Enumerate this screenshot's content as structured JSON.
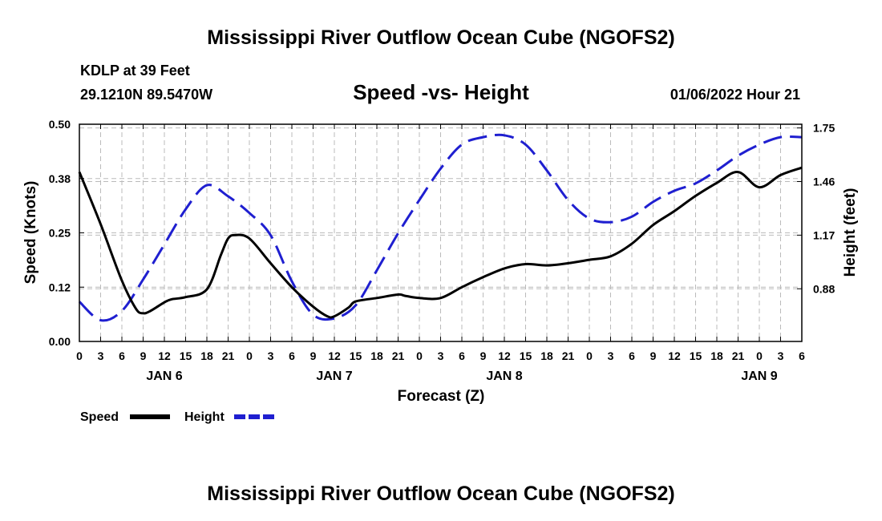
{
  "page": {
    "title": "Mississippi River Outflow Ocean Cube (NGOFS2)",
    "footer_title": "Mississippi River Outflow Ocean Cube (NGOFS2)"
  },
  "station": {
    "name": "KDLP at 39 Feet",
    "coords": "29.1210N  89.5470W",
    "timestamp": "01/06/2022 Hour 21"
  },
  "colors": {
    "speed": "#000000",
    "height": "#1f1fd0",
    "grid": "#bbbbbb"
  },
  "chart_data": {
    "type": "line",
    "title": "Speed -vs- Height",
    "xlabel": "Forecast (Z)",
    "ylabel": "Speed (Knots)",
    "y2label": "Height (feet)",
    "x_unit": "hours from 2022-01-05 00Z",
    "xlim": [
      0,
      102
    ],
    "ylim": [
      0,
      0.5
    ],
    "y2lim": [
      0.595,
      1.77
    ],
    "x_tick_values": [
      0,
      3,
      6,
      9,
      12,
      15,
      18,
      21,
      24,
      27,
      30,
      33,
      36,
      39,
      42,
      45,
      48,
      51,
      54,
      57,
      60,
      63,
      66,
      69,
      72,
      75,
      78,
      81,
      84,
      87,
      90,
      93,
      96,
      99,
      102
    ],
    "x_tick_labels": [
      "0",
      "3",
      "6",
      "9",
      "12",
      "15",
      "18",
      "21",
      "0",
      "3",
      "6",
      "9",
      "12",
      "15",
      "18",
      "21",
      "0",
      "3",
      "6",
      "9",
      "12",
      "15",
      "18",
      "21",
      "0",
      "3",
      "6",
      "9",
      "12",
      "15",
      "18",
      "21",
      "0",
      "3",
      "6"
    ],
    "y_tick_values": [
      0,
      0.125,
      0.25,
      0.375,
      0.5
    ],
    "y_tick_labels": [
      "0.00",
      "0.12",
      "0.25",
      "0.38",
      "0.50"
    ],
    "y2_tick_values": [
      0.88,
      1.17,
      1.46,
      1.75
    ],
    "y2_tick_labels": [
      "0.88",
      "1.17",
      "1.46",
      "1.75"
    ],
    "date_labels": [
      {
        "x": 12,
        "label": "JAN 6"
      },
      {
        "x": 36,
        "label": "JAN 7"
      },
      {
        "x": 60,
        "label": "JAN 8"
      },
      {
        "x": 96,
        "label": "JAN 9"
      }
    ],
    "series": [
      {
        "name": "Speed",
        "axis": "left",
        "style": "solid",
        "x": [
          0,
          3,
          6,
          8,
          9,
          10,
          12,
          13,
          15,
          18,
          20,
          21,
          22,
          24,
          27,
          30,
          33,
          35,
          36,
          38,
          39,
          42,
          45,
          46,
          48,
          51,
          54,
          57,
          60,
          63,
          66,
          69,
          72,
          75,
          78,
          81,
          84,
          87,
          90,
          93,
          96,
          99,
          102
        ],
        "y": [
          0.39,
          0.27,
          0.14,
          0.075,
          0.065,
          0.07,
          0.09,
          0.097,
          0.102,
          0.12,
          0.2,
          0.237,
          0.245,
          0.237,
          0.18,
          0.125,
          0.08,
          0.058,
          0.058,
          0.078,
          0.092,
          0.1,
          0.108,
          0.105,
          0.1,
          0.1,
          0.125,
          0.148,
          0.168,
          0.178,
          0.175,
          0.18,
          0.188,
          0.196,
          0.225,
          0.268,
          0.3,
          0.335,
          0.365,
          0.39,
          0.355,
          0.383,
          0.4
        ]
      },
      {
        "name": "Height",
        "axis": "right",
        "style": "dashed",
        "x": [
          0,
          3,
          6,
          9,
          12,
          15,
          18,
          21,
          24,
          27,
          30,
          33,
          36,
          39,
          42,
          45,
          48,
          51,
          54,
          57,
          60,
          63,
          66,
          69,
          72,
          75,
          78,
          81,
          84,
          87,
          90,
          93,
          96,
          99,
          102
        ],
        "y": [
          0.81,
          0.71,
          0.76,
          0.93,
          1.12,
          1.31,
          1.44,
          1.38,
          1.29,
          1.17,
          0.92,
          0.74,
          0.72,
          0.79,
          0.98,
          1.18,
          1.36,
          1.53,
          1.66,
          1.7,
          1.71,
          1.66,
          1.52,
          1.36,
          1.26,
          1.24,
          1.27,
          1.35,
          1.41,
          1.45,
          1.52,
          1.6,
          1.66,
          1.7,
          1.7
        ]
      }
    ],
    "legend": [
      {
        "label": "Speed",
        "style": "solid"
      },
      {
        "label": "Height",
        "style": "dashed"
      }
    ]
  }
}
